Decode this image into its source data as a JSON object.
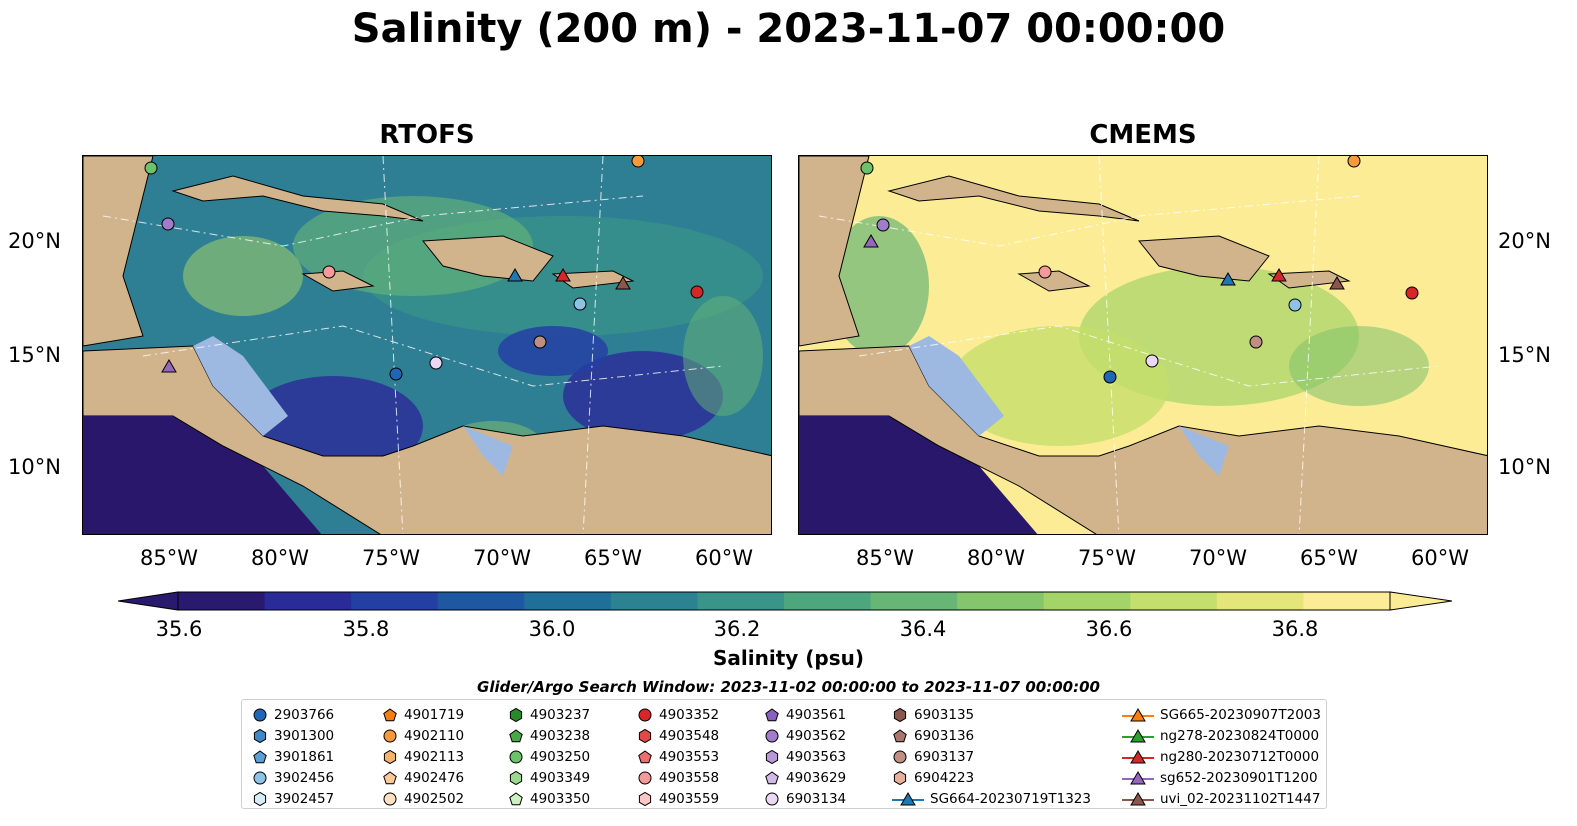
{
  "title": "Salinity (200 m) - 2023-11-07 00:00:00",
  "panels": [
    {
      "title": "RTOFS"
    },
    {
      "title": "CMEMS"
    }
  ],
  "lon_ticks": [
    "85°W",
    "80°W",
    "75°W",
    "70°W",
    "65°W",
    "60°W"
  ],
  "lat_ticks": [
    "20°N",
    "15°N",
    "10°N"
  ],
  "colorbar": {
    "label": "Salinity (psu)",
    "ticks": [
      "35.6",
      "35.8",
      "36.0",
      "36.2",
      "36.4",
      "36.6",
      "36.8"
    ],
    "min": 35.5,
    "max": 36.9,
    "colors": [
      "#2a1a6e",
      "#2b2a99",
      "#243fa3",
      "#1d58a0",
      "#1f6f98",
      "#2b8291",
      "#3a9489",
      "#4ea67f",
      "#68b675",
      "#85c56c",
      "#a4d467",
      "#c5df6c",
      "#e4e67a",
      "#fcec96"
    ]
  },
  "search_window": "Glider/Argo Search Window: 2023-11-02 00:00:00 to 2023-11-07 00:00:00",
  "legend": {
    "columns": [
      [
        {
          "label": "2903766",
          "marker": "circle",
          "color": "#1f66b4"
        },
        {
          "label": "3901300",
          "marker": "hexagon",
          "color": "#3f86c4"
        },
        {
          "label": "3901861",
          "marker": "pentagon",
          "color": "#5a9fd6"
        },
        {
          "label": "3902456",
          "marker": "circle",
          "color": "#8fc3e6"
        },
        {
          "label": "3902457",
          "marker": "hexagon",
          "color": "#d8ecf8"
        }
      ],
      [
        {
          "label": "4901719",
          "marker": "pentagon",
          "color": "#f57f0e"
        },
        {
          "label": "4902110",
          "marker": "circle",
          "color": "#f79a3c"
        },
        {
          "label": "4902113",
          "marker": "hexagon",
          "color": "#f9b26b"
        },
        {
          "label": "4902476",
          "marker": "pentagon",
          "color": "#fbc995"
        },
        {
          "label": "4902502",
          "marker": "circle",
          "color": "#fde1c2"
        }
      ],
      [
        {
          "label": "4903237",
          "marker": "hexagon",
          "color": "#2a8a2a"
        },
        {
          "label": "4903238",
          "marker": "pentagon",
          "color": "#47a845"
        },
        {
          "label": "4903250",
          "marker": "circle",
          "color": "#6cc36a"
        },
        {
          "label": "4903349",
          "marker": "hexagon",
          "color": "#9ad98e"
        },
        {
          "label": "4903350",
          "marker": "pentagon",
          "color": "#cdf0c0"
        }
      ],
      [
        {
          "label": "4903352",
          "marker": "circle",
          "color": "#d62628"
        },
        {
          "label": "4903548",
          "marker": "hexagon",
          "color": "#e2484a"
        },
        {
          "label": "4903553",
          "marker": "pentagon",
          "color": "#ec6d70"
        },
        {
          "label": "4903558",
          "marker": "circle",
          "color": "#f59a9a"
        },
        {
          "label": "4903559",
          "marker": "hexagon",
          "color": "#fcc8c6"
        }
      ],
      [
        {
          "label": "4903561",
          "marker": "pentagon",
          "color": "#8a60bd"
        },
        {
          "label": "4903562",
          "marker": "circle",
          "color": "#a07ccb"
        },
        {
          "label": "4903563",
          "marker": "hexagon",
          "color": "#b899d8"
        },
        {
          "label": "4903629",
          "marker": "pentagon",
          "color": "#d2b9e6"
        },
        {
          "label": "6903134",
          "marker": "circle",
          "color": "#ead8f5"
        }
      ],
      [
        {
          "label": "6903135",
          "marker": "hexagon",
          "color": "#8b564b"
        },
        {
          "label": "6903136",
          "marker": "pentagon",
          "color": "#a8766a"
        },
        {
          "label": "6903137",
          "marker": "circle",
          "color": "#c08f84"
        },
        {
          "label": "6904223",
          "marker": "hexagon",
          "color": "#e6b09d"
        },
        {
          "label": "SG664-20230719T1323",
          "marker": "triangle-line",
          "color": "#1f77b4"
        }
      ],
      [
        {
          "label": "SG665-20230907T2003",
          "marker": "triangle-line",
          "color": "#ff7f0e"
        },
        {
          "label": "ng278-20230824T0000",
          "marker": "triangle-line",
          "color": "#2ca02c"
        },
        {
          "label": "ng280-20230712T0000",
          "marker": "triangle-line",
          "color": "#d62728"
        },
        {
          "label": "sg652-20230901T1200",
          "marker": "triangle-line",
          "color": "#9467bd"
        },
        {
          "label": "uvi_02-20231102T1447",
          "marker": "triangle-line",
          "color": "#8c564b"
        }
      ]
    ]
  },
  "colors": {
    "land": "#d2b48c",
    "shelf": "#9db9e2",
    "deep": "#28176a",
    "ocean_mid": "#2e7f93",
    "yellow": "#fcec96"
  }
}
